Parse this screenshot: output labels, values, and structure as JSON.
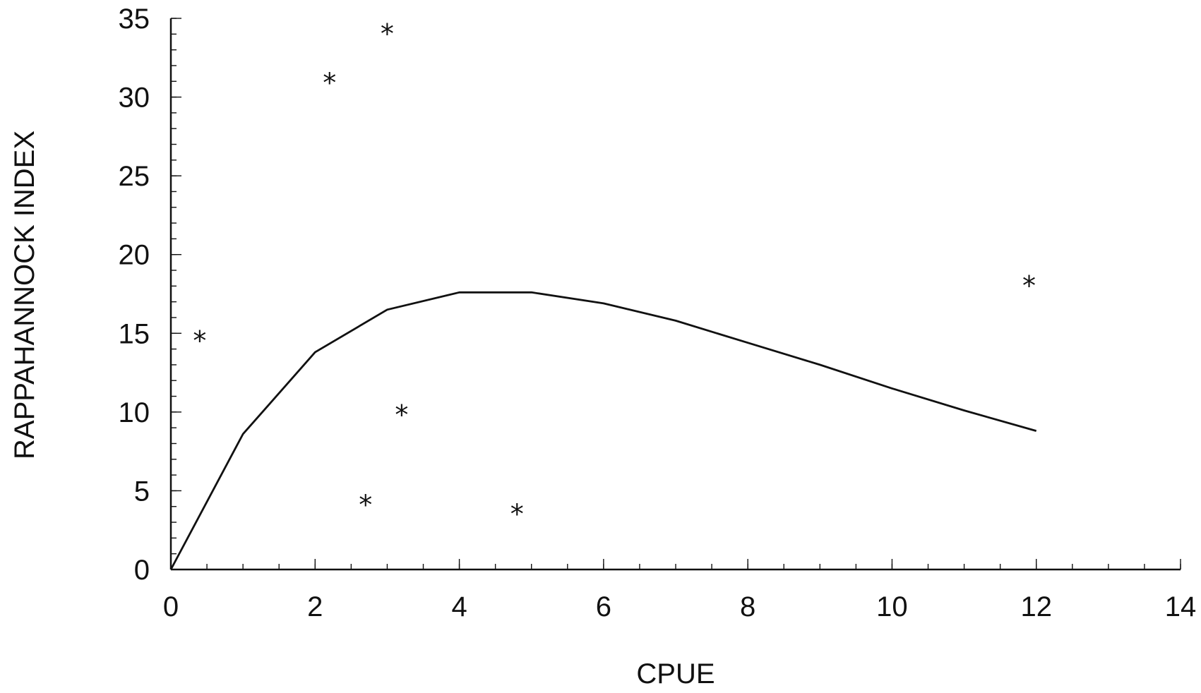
{
  "chart_data": {
    "type": "scatter",
    "title": "",
    "xlabel": "CPUE",
    "ylabel": "RAPPAHANNOCK INDEX",
    "xlim": [
      0,
      14
    ],
    "ylim": [
      0,
      35
    ],
    "x_ticks": [
      0,
      2,
      4,
      6,
      8,
      10,
      12,
      14
    ],
    "y_ticks": [
      0,
      5,
      10,
      15,
      20,
      25,
      30,
      35
    ],
    "x_tick_labels": [
      "0",
      "2",
      "4",
      "6",
      "8",
      "10",
      "12",
      "14"
    ],
    "y_tick_labels": [
      "0",
      "5",
      "10",
      "15",
      "20",
      "25",
      "30",
      "35"
    ],
    "x_minor_step": 0.5,
    "y_minor_step": 1,
    "grid": false,
    "legend": "none",
    "marker": "*",
    "color": "#111111",
    "series": [
      {
        "type": "scatter",
        "points": [
          {
            "x": 0.4,
            "y": 14.6
          },
          {
            "x": 2.2,
            "y": 31.0
          },
          {
            "x": 3.0,
            "y": 34.1
          },
          {
            "x": 3.2,
            "y": 9.9
          },
          {
            "x": 2.7,
            "y": 4.2
          },
          {
            "x": 4.8,
            "y": 3.6
          },
          {
            "x": 11.9,
            "y": 18.1
          }
        ]
      },
      {
        "type": "line",
        "points": [
          {
            "x": 0,
            "y": 0
          },
          {
            "x": 1,
            "y": 8.6
          },
          {
            "x": 2,
            "y": 13.8
          },
          {
            "x": 3,
            "y": 16.5
          },
          {
            "x": 4,
            "y": 17.6
          },
          {
            "x": 5,
            "y": 17.6
          },
          {
            "x": 6,
            "y": 16.9
          },
          {
            "x": 7,
            "y": 15.8
          },
          {
            "x": 8,
            "y": 14.4
          },
          {
            "x": 9,
            "y": 13.0
          },
          {
            "x": 10,
            "y": 11.5
          },
          {
            "x": 11,
            "y": 10.1
          },
          {
            "x": 12,
            "y": 8.8
          }
        ]
      }
    ]
  }
}
